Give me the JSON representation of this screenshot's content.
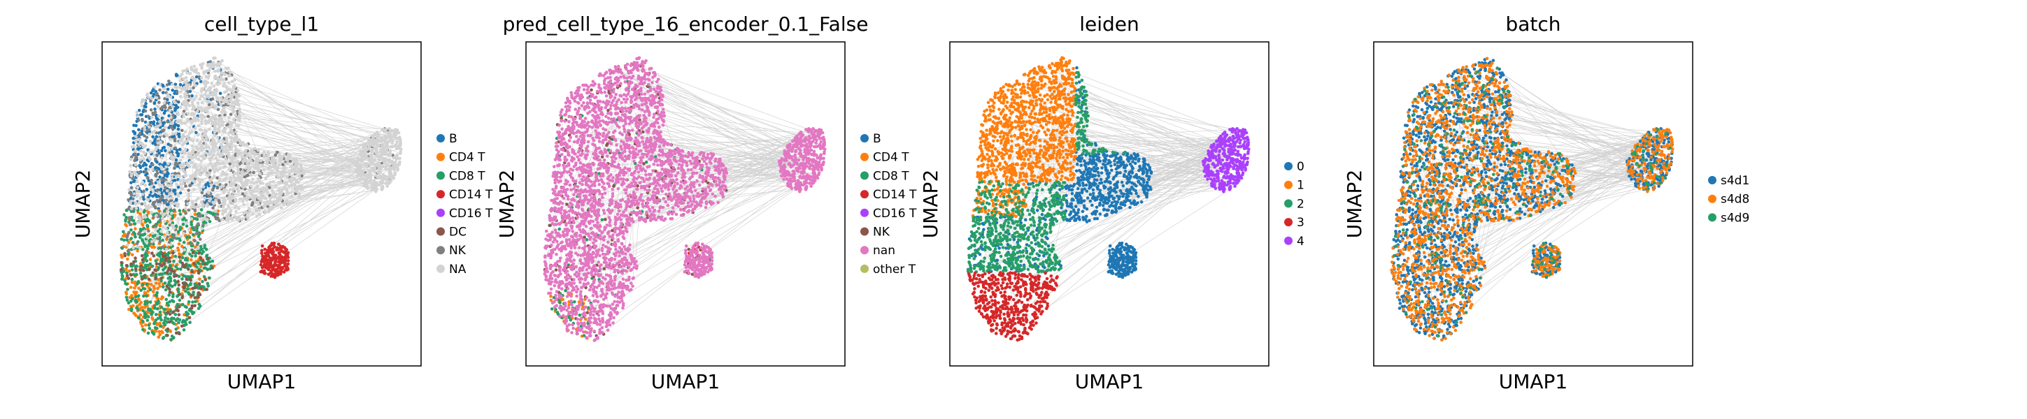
{
  "chart_data": [
    {
      "type": "scatter",
      "title": "cell_type_l1",
      "xlabel": "UMAP1",
      "ylabel": "UMAP2",
      "legend_placement": "right",
      "categories": [
        {
          "label": "B",
          "color": "#1f77b4"
        },
        {
          "label": "CD4 T",
          "color": "#ff7f0e"
        },
        {
          "label": "CD8 T",
          "color": "#279e68"
        },
        {
          "label": "CD14 T",
          "color": "#d62728"
        },
        {
          "label": "CD16 T",
          "color": "#aa40fc"
        },
        {
          "label": "DC",
          "color": "#8c564b"
        },
        {
          "label": "NK",
          "color": "#7f7f7f"
        },
        {
          "label": "NA",
          "color": "#d3d3d3"
        }
      ]
    },
    {
      "type": "scatter",
      "title": "pred_cell_type_16_encoder_0.1_False",
      "xlabel": "UMAP1",
      "ylabel": "UMAP2",
      "legend_placement": "right",
      "categories": [
        {
          "label": "B",
          "color": "#1f77b4"
        },
        {
          "label": "CD4 T",
          "color": "#ff7f0e"
        },
        {
          "label": "CD8 T",
          "color": "#279e68"
        },
        {
          "label": "CD14 T",
          "color": "#d62728"
        },
        {
          "label": "CD16 T",
          "color": "#aa40fc"
        },
        {
          "label": "NK",
          "color": "#8c564b"
        },
        {
          "label": "nan",
          "color": "#e377c2"
        },
        {
          "label": "other T",
          "color": "#b5bd61"
        }
      ]
    },
    {
      "type": "scatter",
      "title": "leiden",
      "xlabel": "UMAP1",
      "ylabel": "UMAP2",
      "legend_placement": "right",
      "categories": [
        {
          "label": "0",
          "color": "#1f77b4"
        },
        {
          "label": "1",
          "color": "#ff7f0e"
        },
        {
          "label": "2",
          "color": "#279e68"
        },
        {
          "label": "3",
          "color": "#d62728"
        },
        {
          "label": "4",
          "color": "#aa40fc"
        }
      ]
    },
    {
      "type": "scatter",
      "title": "batch",
      "xlabel": "UMAP1",
      "ylabel": "UMAP2",
      "legend_placement": "right",
      "categories": [
        {
          "label": "s4d1",
          "color": "#1f77b4"
        },
        {
          "label": "s4d8",
          "color": "#ff7f0e"
        },
        {
          "label": "s4d9",
          "color": "#279e68"
        }
      ]
    }
  ],
  "colors": {
    "edges": "#7f7f7f",
    "frame": "#000000"
  }
}
